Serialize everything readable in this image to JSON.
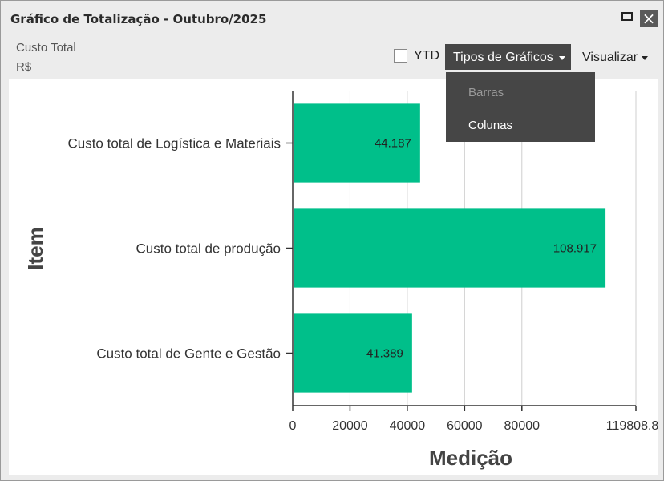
{
  "window": {
    "title": "Gráfico de Totalização - Outubro/2025"
  },
  "header": {
    "subtitle_line1": "Custo Total",
    "subtitle_line2": "R$"
  },
  "toolbar": {
    "ytd_label": "YTD",
    "ytd_checked": false,
    "chart_types_label": "Tipos de Gráficos",
    "view_label": "Visualizar"
  },
  "dropdown": {
    "items": [
      {
        "label": "Barras",
        "disabled": true
      },
      {
        "label": "Colunas",
        "disabled": false
      }
    ]
  },
  "icons": {
    "maximize": "maximize-icon",
    "close": "close-icon"
  },
  "colors": {
    "bar": "#00BF8A",
    "grid": "#cfcfcf",
    "axis": "#333333"
  },
  "chart_data": {
    "type": "bar",
    "orientation": "horizontal",
    "categories": [
      "Custo total de Logística e Materiais",
      "Custo total de produção",
      "Custo total de Gente e Gestão"
    ],
    "values": [
      44187,
      108917,
      41389
    ],
    "value_labels": [
      "44.187",
      "108.917",
      "41.389"
    ],
    "xlabel": "Medição",
    "ylabel": "Item",
    "xlim": [
      0,
      119808.81
    ],
    "xticks": [
      0,
      20000,
      40000,
      60000,
      80000,
      119808.81
    ],
    "xtick_labels": [
      "0",
      "20000",
      "40000",
      "60000",
      "80000",
      "119808.81"
    ],
    "grid": true
  }
}
